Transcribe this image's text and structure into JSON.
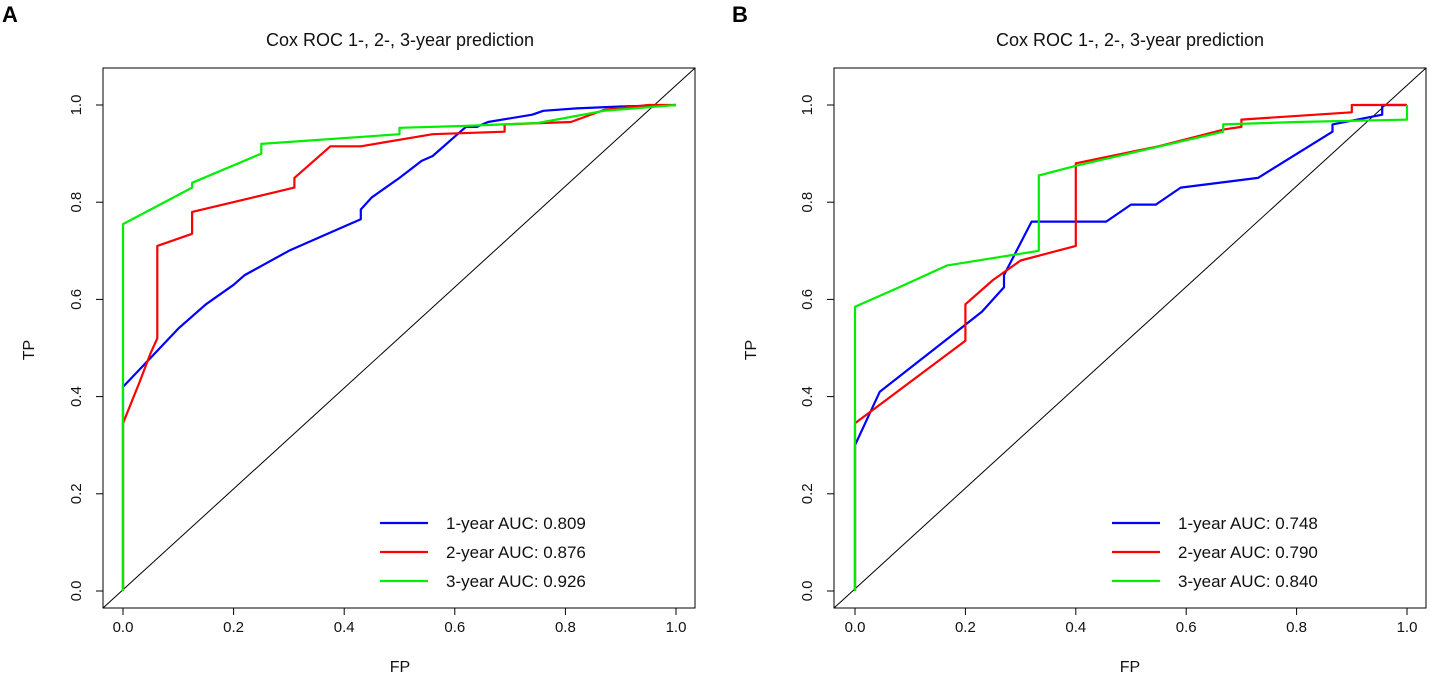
{
  "chart_data": [
    {
      "panel_label": "A",
      "type": "line",
      "title": "Cox ROC 1-, 2-, 3-year prediction",
      "xlabel": "FP",
      "ylabel": "TP",
      "xlim": [
        0,
        1
      ],
      "ylim": [
        0,
        1
      ],
      "xticks": [
        "0.0",
        "0.2",
        "0.4",
        "0.6",
        "0.8",
        "1.0"
      ],
      "yticks": [
        "0.0",
        "0.2",
        "0.4",
        "0.6",
        "0.8",
        "1.0"
      ],
      "legend_position": "bottom-right",
      "diagonal": true,
      "series": [
        {
          "name": "1-year AUC: 0.809",
          "color": "#0000ff",
          "points": [
            [
              0,
              0
            ],
            [
              0,
              0.42
            ],
            [
              0.05,
              0.48
            ],
            [
              0.1,
              0.54
            ],
            [
              0.15,
              0.59
            ],
            [
              0.2,
              0.63
            ],
            [
              0.22,
              0.65
            ],
            [
              0.3,
              0.7
            ],
            [
              0.37,
              0.735
            ],
            [
              0.39,
              0.745
            ],
            [
              0.43,
              0.765
            ],
            [
              0.43,
              0.785
            ],
            [
              0.45,
              0.81
            ],
            [
              0.5,
              0.85
            ],
            [
              0.54,
              0.885
            ],
            [
              0.56,
              0.895
            ],
            [
              0.6,
              0.935
            ],
            [
              0.62,
              0.955
            ],
            [
              0.64,
              0.955
            ],
            [
              0.66,
              0.965
            ],
            [
              0.74,
              0.98
            ],
            [
              0.76,
              0.988
            ],
            [
              0.82,
              0.993
            ],
            [
              0.9,
              0.997
            ],
            [
              1,
              1
            ]
          ]
        },
        {
          "name": "2-year AUC: 0.876",
          "color": "#ff0000",
          "points": [
            [
              0,
              0
            ],
            [
              0,
              0.345
            ],
            [
              0.03,
              0.43
            ],
            [
              0.05,
              0.49
            ],
            [
              0.062,
              0.52
            ],
            [
              0.062,
              0.71
            ],
            [
              0.125,
              0.735
            ],
            [
              0.125,
              0.78
            ],
            [
              0.31,
              0.83
            ],
            [
              0.31,
              0.85
            ],
            [
              0.375,
              0.915
            ],
            [
              0.43,
              0.915
            ],
            [
              0.56,
              0.94
            ],
            [
              0.69,
              0.945
            ],
            [
              0.69,
              0.96
            ],
            [
              0.81,
              0.965
            ],
            [
              0.87,
              0.99
            ],
            [
              0.95,
              1.0
            ],
            [
              1,
              1
            ]
          ]
        },
        {
          "name": "3-year AUC: 0.926",
          "color": "#00ee00",
          "points": [
            [
              0,
              0
            ],
            [
              0,
              0.755
            ],
            [
              0.125,
              0.83
            ],
            [
              0.125,
              0.84
            ],
            [
              0.25,
              0.9
            ],
            [
              0.25,
              0.92
            ],
            [
              0.5,
              0.94
            ],
            [
              0.5,
              0.953
            ],
            [
              0.62,
              0.957
            ],
            [
              0.75,
              0.963
            ],
            [
              0.87,
              0.988
            ],
            [
              1,
              1
            ]
          ]
        }
      ]
    },
    {
      "panel_label": "B",
      "type": "line",
      "title": "Cox ROC 1-, 2-, 3-year prediction",
      "xlabel": "FP",
      "ylabel": "TP",
      "xlim": [
        0,
        1
      ],
      "ylim": [
        0,
        1
      ],
      "xticks": [
        "0.0",
        "0.2",
        "0.4",
        "0.6",
        "0.8",
        "1.0"
      ],
      "yticks": [
        "0.0",
        "0.2",
        "0.4",
        "0.6",
        "0.8",
        "1.0"
      ],
      "legend_position": "bottom-right",
      "diagonal": true,
      "series": [
        {
          "name": "1-year AUC: 0.748",
          "color": "#0000ff",
          "points": [
            [
              0,
              0
            ],
            [
              0,
              0.3
            ],
            [
              0.045,
              0.41
            ],
            [
              0.09,
              0.45
            ],
            [
              0.18,
              0.53
            ],
            [
              0.23,
              0.575
            ],
            [
              0.27,
              0.625
            ],
            [
              0.27,
              0.65
            ],
            [
              0.32,
              0.76
            ],
            [
              0.455,
              0.76
            ],
            [
              0.5,
              0.795
            ],
            [
              0.545,
              0.795
            ],
            [
              0.59,
              0.83
            ],
            [
              0.73,
              0.85
            ],
            [
              0.865,
              0.945
            ],
            [
              0.865,
              0.96
            ],
            [
              0.955,
              0.98
            ],
            [
              0.955,
              1.0
            ],
            [
              1,
              1
            ]
          ]
        },
        {
          "name": "2-year AUC: 0.790",
          "color": "#ff0000",
          "points": [
            [
              0,
              0
            ],
            [
              0,
              0.345
            ],
            [
              0.1,
              0.43
            ],
            [
              0.2,
              0.515
            ],
            [
              0.2,
              0.59
            ],
            [
              0.25,
              0.64
            ],
            [
              0.3,
              0.68
            ],
            [
              0.4,
              0.71
            ],
            [
              0.4,
              0.88
            ],
            [
              0.55,
              0.915
            ],
            [
              0.67,
              0.95
            ],
            [
              0.7,
              0.955
            ],
            [
              0.7,
              0.97
            ],
            [
              0.9,
              0.985
            ],
            [
              0.9,
              1.0
            ],
            [
              1,
              1
            ]
          ]
        },
        {
          "name": "3-year AUC: 0.840",
          "color": "#00ee00",
          "points": [
            [
              0,
              0
            ],
            [
              0,
              0.585
            ],
            [
              0.08,
              0.625
            ],
            [
              0.167,
              0.67
            ],
            [
              0.333,
              0.7
            ],
            [
              0.333,
              0.855
            ],
            [
              0.4,
              0.875
            ],
            [
              0.667,
              0.945
            ],
            [
              0.667,
              0.96
            ],
            [
              0.8,
              0.965
            ],
            [
              1.0,
              0.97
            ],
            [
              1.0,
              1.0
            ]
          ]
        }
      ]
    }
  ]
}
